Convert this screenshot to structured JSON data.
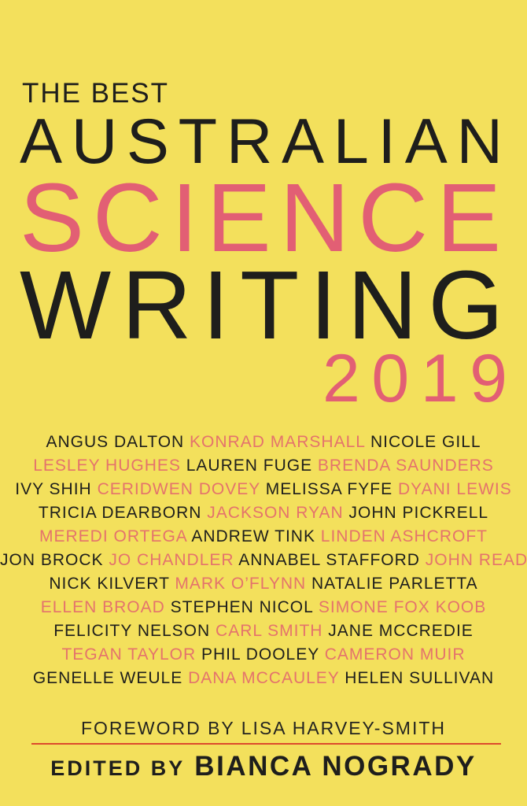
{
  "cover": {
    "title": {
      "line1": "THE BEST",
      "line2": "AUSTRALIAN",
      "line3": "SCIENCE",
      "line4": "WRITING",
      "year": "2019"
    },
    "contributors": {
      "lines": [
        [
          {
            "text": "ANGUS DALTON",
            "color": "black"
          },
          {
            "text": "KONRAD MARSHALL",
            "color": "pink"
          },
          {
            "text": "NICOLE GILL",
            "color": "black"
          }
        ],
        [
          {
            "text": "LESLEY HUGHES",
            "color": "pink"
          },
          {
            "text": "LAUREN FUGE",
            "color": "black"
          },
          {
            "text": "BRENDA SAUNDERS",
            "color": "pink"
          }
        ],
        [
          {
            "text": "IVY SHIH",
            "color": "black"
          },
          {
            "text": "CERIDWEN DOVEY",
            "color": "pink"
          },
          {
            "text": "MELISSA FYFE",
            "color": "black"
          },
          {
            "text": "DYANI LEWIS",
            "color": "pink"
          }
        ],
        [
          {
            "text": "TRICIA DEARBORN",
            "color": "black"
          },
          {
            "text": "JACKSON RYAN",
            "color": "pink"
          },
          {
            "text": "JOHN PICKRELL",
            "color": "black"
          }
        ],
        [
          {
            "text": "MEREDI ORTEGA",
            "color": "pink"
          },
          {
            "text": "ANDREW TINK",
            "color": "black"
          },
          {
            "text": "LINDEN ASHCROFT",
            "color": "pink"
          }
        ],
        [
          {
            "text": "JON BROCK",
            "color": "black"
          },
          {
            "text": "JO CHANDLER",
            "color": "pink"
          },
          {
            "text": "ANNABEL STAFFORD",
            "color": "black"
          },
          {
            "text": "JOHN READ",
            "color": "pink"
          }
        ],
        [
          {
            "text": "NICK KILVERT",
            "color": "black"
          },
          {
            "text": "MARK O’FLYNN",
            "color": "pink"
          },
          {
            "text": "NATALIE PARLETTA",
            "color": "black"
          }
        ],
        [
          {
            "text": "ELLEN BROAD",
            "color": "pink"
          },
          {
            "text": "STEPHEN NICOL",
            "color": "black"
          },
          {
            "text": "SIMONE FOX KOOB",
            "color": "pink"
          }
        ],
        [
          {
            "text": "FELICITY NELSON",
            "color": "black"
          },
          {
            "text": "CARL SMITH",
            "color": "pink"
          },
          {
            "text": "JANE MCCREDIE",
            "color": "black"
          }
        ],
        [
          {
            "text": "TEGAN TAYLOR",
            "color": "pink"
          },
          {
            "text": "PHIL DOOLEY",
            "color": "black"
          },
          {
            "text": "CAMERON MUIR",
            "color": "pink"
          }
        ],
        [
          {
            "text": "GENELLE WEULE",
            "color": "black"
          },
          {
            "text": "DANA MCCAULEY",
            "color": "pink"
          },
          {
            "text": "HELEN SULLIVAN",
            "color": "black"
          }
        ]
      ]
    },
    "foreword": "FOREWORD BY LISA HARVEY-SMITH",
    "edited_by_label": "EDITED BY",
    "editor_name": "BIANCA NOGRADY",
    "colors": {
      "background_yellow": "#F3E05C",
      "text_black": "#1E1E1C",
      "title_pink": "#E25F74",
      "names_pink": "#E4736C",
      "divider_orange": "#DC4A2C"
    }
  }
}
